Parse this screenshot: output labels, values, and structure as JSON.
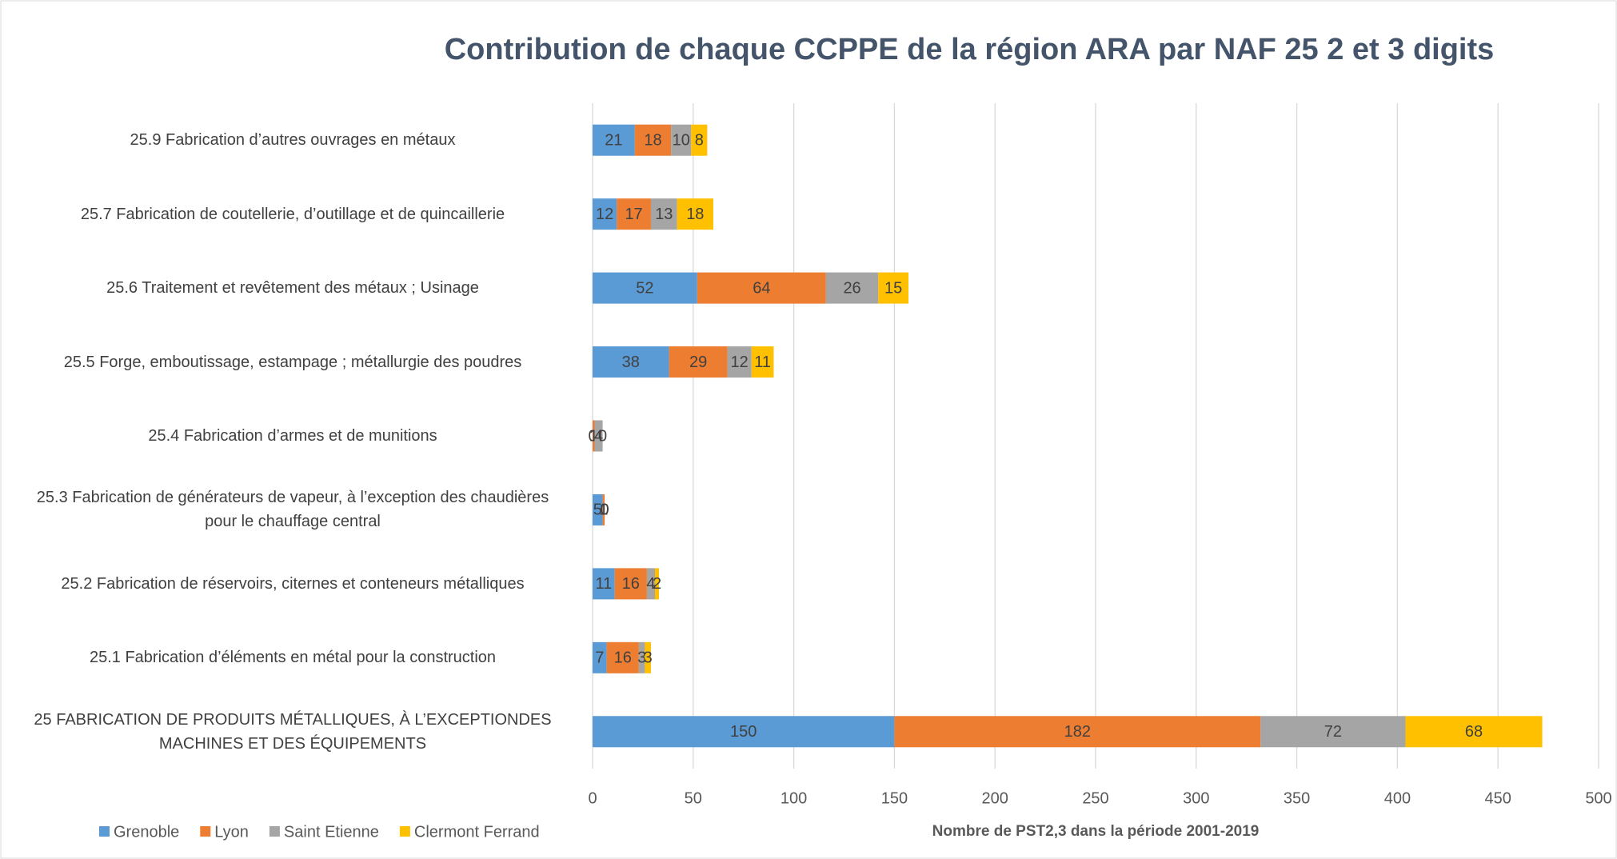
{
  "chart_data": {
    "type": "stacked-barh",
    "title": "Contribution de chaque CCPPE de la région ARA par NAF 25 2 et 3 digits",
    "xlabel": "Nombre de PST2,3 dans la période 2001-2019",
    "categories": [
      "25.9 Fabrication d’autres ouvrages en métaux",
      "25.7 Fabrication de coutellerie, d’outillage et de quincaillerie",
      "25.6 Traitement et revêtement des métaux ; Usinage",
      "25.5 Forge, emboutissage, estampage ; métallurgie des poudres",
      "25.4 Fabrication d’armes et de munitions",
      "25.3 Fabrication de générateurs de vapeur, à l’exception des chaudières\npour le chauffage central",
      "25.2 Fabrication de réservoirs, citernes et conteneurs métalliques",
      "25.1 Fabrication d’éléments en métal pour la construction",
      "25 FABRICATION DE PRODUITS MÉTALLIQUES, À L’EXCEPTIONDES\nMACHINES ET DES ÉQUIPEMENTS"
    ],
    "series": [
      {
        "name": "Grenoble",
        "color": "#5b9bd5",
        "values": [
          21,
          12,
          52,
          38,
          0,
          5,
          11,
          7,
          150
        ]
      },
      {
        "name": "Lyon",
        "color": "#ed7d31",
        "values": [
          18,
          17,
          64,
          29,
          1,
          1,
          16,
          16,
          182
        ]
      },
      {
        "name": "Saint Etienne",
        "color": "#a5a5a5",
        "values": [
          10,
          13,
          26,
          12,
          4,
          0,
          4,
          3,
          72
        ]
      },
      {
        "name": "Clermont Ferrand",
        "color": "#ffc000",
        "values": [
          8,
          18,
          15,
          11,
          0,
          0,
          2,
          3,
          68
        ]
      }
    ],
    "xlim": [
      0,
      500
    ],
    "xticks": [
      0,
      50,
      100,
      150,
      200,
      250,
      300,
      350,
      400,
      450,
      500
    ],
    "grid": true,
    "legend": "bottom-left"
  }
}
